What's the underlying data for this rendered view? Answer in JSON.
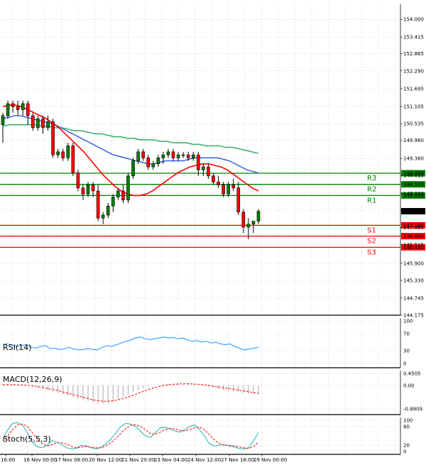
{
  "chart_data": {
    "type": "candlestick",
    "price_panel": {
      "y_ticks": [
        "154.000",
        "153.415",
        "152.865",
        "152.290",
        "151.695",
        "151.105",
        "150.535",
        "149.980",
        "149.380",
        "148.815",
        "148.220",
        "147.665",
        "147.085",
        "146.515",
        "145.900",
        "145.330",
        "144.745",
        "144.175"
      ],
      "ylim": [
        144.175,
        154.5
      ],
      "current_price": "147.628",
      "current_price_color": "#000000",
      "candles": [
        {
          "o": 150.5,
          "h": 150.9,
          "l": 149.9,
          "c": 150.8
        },
        {
          "o": 150.8,
          "h": 151.3,
          "l": 150.7,
          "c": 151.2
        },
        {
          "o": 151.2,
          "h": 151.3,
          "l": 150.9,
          "c": 151.1
        },
        {
          "o": 151.1,
          "h": 151.3,
          "l": 150.8,
          "c": 151.0
        },
        {
          "o": 151.0,
          "h": 151.3,
          "l": 150.8,
          "c": 151.2
        },
        {
          "o": 151.2,
          "h": 151.3,
          "l": 150.5,
          "c": 150.8
        },
        {
          "o": 150.8,
          "h": 150.9,
          "l": 150.3,
          "c": 150.4
        },
        {
          "o": 150.4,
          "h": 150.8,
          "l": 150.3,
          "c": 150.7
        },
        {
          "o": 150.7,
          "h": 150.8,
          "l": 150.2,
          "c": 150.4
        },
        {
          "o": 150.4,
          "h": 150.8,
          "l": 150.3,
          "c": 150.6
        },
        {
          "o": 150.6,
          "h": 150.7,
          "l": 149.4,
          "c": 149.5
        },
        {
          "o": 149.5,
          "h": 149.7,
          "l": 149.4,
          "c": 149.6
        },
        {
          "o": 149.6,
          "h": 149.7,
          "l": 149.3,
          "c": 149.4
        },
        {
          "o": 149.4,
          "h": 149.9,
          "l": 149.3,
          "c": 149.8
        },
        {
          "o": 149.8,
          "h": 149.9,
          "l": 148.8,
          "c": 148.9
        },
        {
          "o": 148.9,
          "h": 149.0,
          "l": 148.3,
          "c": 148.4
        },
        {
          "o": 148.4,
          "h": 148.5,
          "l": 148.0,
          "c": 148.2
        },
        {
          "o": 148.2,
          "h": 148.6,
          "l": 148.1,
          "c": 148.5
        },
        {
          "o": 148.5,
          "h": 148.6,
          "l": 148.1,
          "c": 148.3
        },
        {
          "o": 148.3,
          "h": 148.5,
          "l": 147.3,
          "c": 147.4
        },
        {
          "o": 147.4,
          "h": 147.6,
          "l": 147.2,
          "c": 147.5
        },
        {
          "o": 147.5,
          "h": 147.9,
          "l": 147.4,
          "c": 147.8
        },
        {
          "o": 147.8,
          "h": 148.2,
          "l": 147.6,
          "c": 148.1
        },
        {
          "o": 148.1,
          "h": 148.4,
          "l": 148.0,
          "c": 148.3
        },
        {
          "o": 148.3,
          "h": 148.5,
          "l": 147.9,
          "c": 148.0
        },
        {
          "o": 148.0,
          "h": 148.9,
          "l": 147.9,
          "c": 148.8
        },
        {
          "o": 148.8,
          "h": 149.4,
          "l": 148.7,
          "c": 149.3
        },
        {
          "o": 149.3,
          "h": 149.7,
          "l": 149.2,
          "c": 149.6
        },
        {
          "o": 149.6,
          "h": 149.7,
          "l": 149.3,
          "c": 149.4
        },
        {
          "o": 149.4,
          "h": 149.5,
          "l": 149.0,
          "c": 149.1
        },
        {
          "o": 149.1,
          "h": 149.3,
          "l": 149.0,
          "c": 149.2
        },
        {
          "o": 149.2,
          "h": 149.5,
          "l": 149.1,
          "c": 149.4
        },
        {
          "o": 149.4,
          "h": 149.6,
          "l": 149.2,
          "c": 149.5
        },
        {
          "o": 149.5,
          "h": 149.7,
          "l": 149.4,
          "c": 149.6
        },
        {
          "o": 149.6,
          "h": 149.7,
          "l": 149.3,
          "c": 149.4
        },
        {
          "o": 149.4,
          "h": 149.6,
          "l": 149.3,
          "c": 149.5
        },
        {
          "o": 149.5,
          "h": 149.6,
          "l": 149.4,
          "c": 149.5
        },
        {
          "o": 149.5,
          "h": 149.6,
          "l": 149.3,
          "c": 149.4
        },
        {
          "o": 149.4,
          "h": 149.6,
          "l": 149.3,
          "c": 149.5
        },
        {
          "o": 149.5,
          "h": 149.6,
          "l": 148.8,
          "c": 149.0
        },
        {
          "o": 149.0,
          "h": 149.2,
          "l": 148.8,
          "c": 149.1
        },
        {
          "o": 149.1,
          "h": 149.2,
          "l": 148.7,
          "c": 148.8
        },
        {
          "o": 148.8,
          "h": 148.9,
          "l": 148.5,
          "c": 148.6
        },
        {
          "o": 148.6,
          "h": 148.8,
          "l": 148.4,
          "c": 148.5
        },
        {
          "o": 148.5,
          "h": 148.6,
          "l": 148.1,
          "c": 148.2
        },
        {
          "o": 148.2,
          "h": 148.6,
          "l": 148.1,
          "c": 148.5
        },
        {
          "o": 148.5,
          "h": 148.7,
          "l": 148.3,
          "c": 148.4
        },
        {
          "o": 148.4,
          "h": 148.6,
          "l": 147.5,
          "c": 147.6
        },
        {
          "o": 147.6,
          "h": 147.7,
          "l": 146.9,
          "c": 147.1
        },
        {
          "o": 147.1,
          "h": 147.4,
          "l": 146.7,
          "c": 147.2
        },
        {
          "o": 147.2,
          "h": 147.3,
          "l": 146.9,
          "c": 147.3
        },
        {
          "o": 147.3,
          "h": 147.7,
          "l": 147.2,
          "c": 147.628
        }
      ],
      "ma_blue": [
        150.7,
        150.75,
        150.8,
        150.8,
        150.75,
        150.7,
        150.65,
        150.6,
        150.55,
        150.5,
        150.4,
        150.3,
        150.2,
        150.1,
        150.0,
        149.9,
        149.8,
        149.7,
        149.6,
        149.5,
        149.45,
        149.4,
        149.35,
        149.3,
        149.25,
        149.2,
        149.2,
        149.25,
        149.3,
        149.3,
        149.3,
        149.3,
        149.35,
        149.4,
        149.4,
        149.4,
        149.4,
        149.4,
        149.35,
        149.3,
        149.2,
        149.1,
        149.0,
        148.95,
        148.9
      ],
      "ma_green": [
        150.45,
        150.5,
        150.5,
        150.5,
        150.5,
        150.5,
        150.45,
        150.45,
        150.4,
        150.4,
        150.35,
        150.3,
        150.3,
        150.25,
        150.2,
        150.2,
        150.15,
        150.1,
        150.1,
        150.05,
        150.05,
        150.0,
        150.0,
        150.0,
        149.95,
        149.95,
        149.9,
        149.9,
        149.9,
        149.85,
        149.85,
        149.8,
        149.8,
        149.8,
        149.75,
        149.75,
        149.7,
        149.65,
        149.6,
        149.55
      ],
      "ma_red": [
        151.1,
        151.15,
        151.15,
        151.1,
        151.0,
        150.9,
        150.8,
        150.7,
        150.55,
        150.4,
        150.2,
        150.0,
        149.8,
        149.6,
        149.35,
        149.1,
        148.85,
        148.65,
        148.45,
        148.3,
        148.2,
        148.15,
        148.15,
        148.2,
        148.3,
        148.45,
        148.6,
        148.75,
        148.9,
        149.0,
        149.1,
        149.15,
        149.2,
        149.2,
        149.15,
        149.1,
        149.0,
        148.85,
        148.7,
        148.55,
        148.4,
        148.3
      ],
      "levels": [
        {
          "name": "R3",
          "value": 148.89,
          "label": "148.890",
          "color": "#008000"
        },
        {
          "name": "R2",
          "value": 148.52,
          "label": "148.520",
          "color": "#008000"
        },
        {
          "name": "R1",
          "value": 148.15,
          "label": "148.150",
          "color": "#008000"
        },
        {
          "name": "S1",
          "value": 147.16,
          "label": "147.160",
          "color": "#ff0000"
        },
        {
          "name": "S2",
          "value": 146.8,
          "label": "146.800",
          "color": "#ff0000"
        },
        {
          "name": "S3",
          "value": 146.43,
          "label": "146.430",
          "color": "#ff0000"
        }
      ],
      "colors": {
        "bull": "#008000",
        "bear": "#ff0000",
        "ma_blue": "#4169e1",
        "ma_green": "#3cb371",
        "ma_red": "#ff0000"
      }
    },
    "rsi_panel": {
      "label": "RSI(14)",
      "y_ticks": [
        "100",
        "70",
        "30",
        "0"
      ],
      "ylim": [
        0,
        100
      ],
      "color": "#1e90ff",
      "values": [
        45,
        46,
        42,
        40,
        43,
        44,
        38,
        36,
        40,
        42,
        35,
        36,
        33,
        34,
        38,
        34,
        32,
        33,
        35,
        33,
        32,
        38,
        42,
        40,
        44,
        48,
        52,
        55,
        60,
        62,
        58,
        56,
        58,
        60,
        62,
        60,
        61,
        58,
        60,
        55,
        52,
        54,
        50,
        52,
        48,
        50,
        46,
        44,
        46,
        40,
        36,
        32,
        34,
        36,
        38
      ]
    },
    "macd_panel": {
      "label": "MACD(12,26,9)",
      "y_ticks": [
        "0.4505",
        "0.00",
        "-0.8909"
      ],
      "ylim": [
        -0.8909,
        0.4505
      ],
      "hist_color": "#a9a9a9",
      "signal_color": "#ff0000",
      "hist": [
        0.05,
        0.06,
        0.05,
        0.04,
        0.03,
        0.0,
        -0.05,
        -0.1,
        -0.15,
        -0.2,
        -0.25,
        -0.3,
        -0.35,
        -0.4,
        -0.45,
        -0.5,
        -0.55,
        -0.6,
        -0.65,
        -0.7,
        -0.7,
        -0.68,
        -0.62,
        -0.55,
        -0.45,
        -0.35,
        -0.25,
        -0.18,
        -0.1,
        -0.05,
        0.0,
        0.02,
        0.04,
        0.05,
        0.06,
        0.05,
        0.05,
        0.04,
        0.03,
        0.0,
        -0.03,
        -0.06,
        -0.1,
        -0.14,
        -0.18,
        -0.2,
        -0.22,
        -0.26,
        -0.3,
        -0.32,
        -0.34,
        -0.36
      ],
      "signal": [
        0.02,
        0.02,
        0.02,
        0.02,
        0.01,
        0.0,
        -0.02,
        -0.05,
        -0.08,
        -0.12,
        -0.16,
        -0.2,
        -0.25,
        -0.3,
        -0.35,
        -0.4,
        -0.45,
        -0.5,
        -0.55,
        -0.58,
        -0.6,
        -0.6,
        -0.58,
        -0.55,
        -0.5,
        -0.44,
        -0.38,
        -0.3,
        -0.23,
        -0.16,
        -0.1,
        -0.05,
        -0.01,
        0.02,
        0.04,
        0.05,
        0.06,
        0.06,
        0.05,
        0.04,
        0.02,
        0.0,
        -0.03,
        -0.06,
        -0.09,
        -0.12,
        -0.15,
        -0.18,
        -0.21,
        -0.24,
        -0.27,
        -0.3
      ]
    },
    "stoch_panel": {
      "label": "Stoch(5,5,3)",
      "y_ticks": [
        "100",
        "80",
        "20",
        "0"
      ],
      "ylim": [
        0,
        100
      ],
      "main_color": "#20b2aa",
      "signal_color": "#ff0000",
      "main": [
        40,
        70,
        90,
        92,
        85,
        60,
        30,
        15,
        12,
        20,
        35,
        30,
        22,
        12,
        8,
        10,
        20,
        18,
        12,
        8,
        14,
        25,
        40,
        60,
        80,
        90,
        88,
        80,
        65,
        50,
        45,
        60,
        75,
        78,
        72,
        66,
        62,
        70,
        80,
        85,
        70,
        50,
        25,
        18,
        20,
        22,
        18,
        15,
        10,
        8,
        12,
        35,
        60
      ],
      "signal": [
        35,
        50,
        70,
        85,
        88,
        80,
        60,
        40,
        25,
        18,
        22,
        28,
        28,
        24,
        16,
        12,
        14,
        16,
        14,
        12,
        12,
        18,
        28,
        42,
        58,
        74,
        84,
        86,
        80,
        70,
        58,
        55,
        62,
        70,
        74,
        72,
        68,
        66,
        70,
        76,
        78,
        70,
        54,
        38,
        26,
        20,
        20,
        18,
        15,
        12,
        10,
        16,
        30
      ]
    },
    "x_ticks": [
      "16:00",
      "16 Nov 00:00",
      "17 Nov 08:00",
      "20 Nov 12:00",
      "21 Nov 20:00",
      "23 Nov 04:00",
      "24 Nov 12:00",
      "27 Nov 16:00",
      "29 Nov 00:00"
    ]
  }
}
